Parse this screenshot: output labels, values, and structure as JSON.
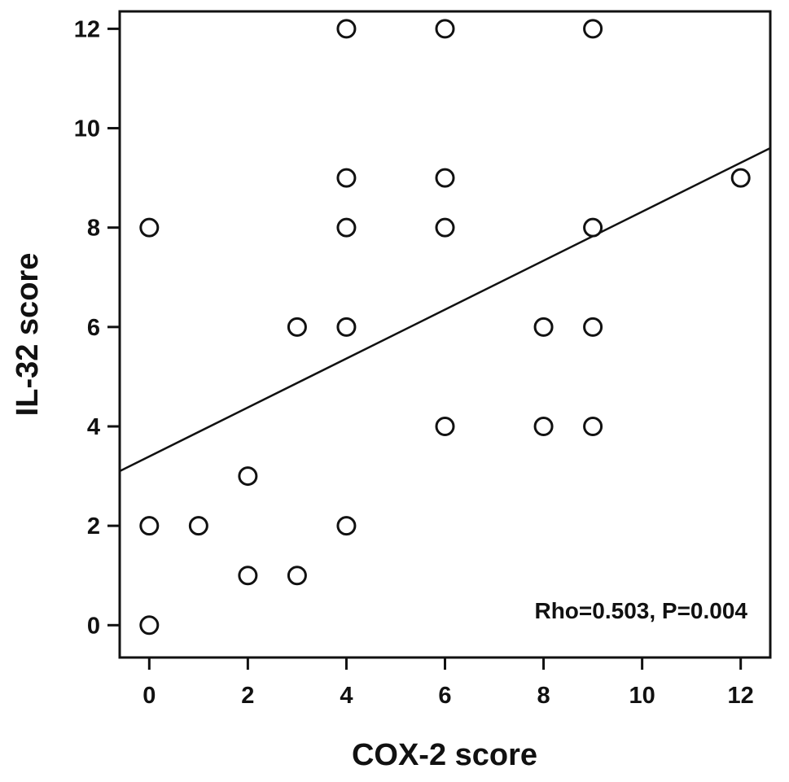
{
  "chart_data": {
    "type": "scatter",
    "title": "",
    "xlabel": "COX-2 score",
    "ylabel": "IL-32 score",
    "xlim": [
      -0.6,
      12.6
    ],
    "ylim": [
      -0.65,
      12.35
    ],
    "x_ticks": [
      0,
      2,
      4,
      6,
      8,
      10,
      12
    ],
    "y_ticks": [
      0,
      2,
      4,
      6,
      8,
      10,
      12
    ],
    "grid": false,
    "legend": "none",
    "annotation": "Rho=0.503,  P=0.004",
    "series": [
      {
        "marker": "open-circle",
        "points": [
          {
            "x": 0,
            "y": 0
          },
          {
            "x": 0,
            "y": 2
          },
          {
            "x": 0,
            "y": 8
          },
          {
            "x": 1,
            "y": 2
          },
          {
            "x": 2,
            "y": 1
          },
          {
            "x": 2,
            "y": 3
          },
          {
            "x": 3,
            "y": 1
          },
          {
            "x": 3,
            "y": 6
          },
          {
            "x": 4,
            "y": 2
          },
          {
            "x": 4,
            "y": 6
          },
          {
            "x": 4,
            "y": 8
          },
          {
            "x": 4,
            "y": 9
          },
          {
            "x": 4,
            "y": 12
          },
          {
            "x": 6,
            "y": 4
          },
          {
            "x": 6,
            "y": 8
          },
          {
            "x": 6,
            "y": 9
          },
          {
            "x": 6,
            "y": 12
          },
          {
            "x": 8,
            "y": 4
          },
          {
            "x": 8,
            "y": 6
          },
          {
            "x": 9,
            "y": 4
          },
          {
            "x": 9,
            "y": 6
          },
          {
            "x": 9,
            "y": 8
          },
          {
            "x": 9,
            "y": 12
          },
          {
            "x": 12,
            "y": 9
          }
        ]
      }
    ],
    "fit_line": {
      "x_start": -0.6,
      "y_start": 3.1,
      "x_end": 12.6,
      "y_end": 9.6
    }
  },
  "colors": {
    "axis": "#111111",
    "marker_stroke": "#111111",
    "marker_fill": "#ffffff",
    "fit_line": "#111111",
    "background": "#ffffff"
  }
}
